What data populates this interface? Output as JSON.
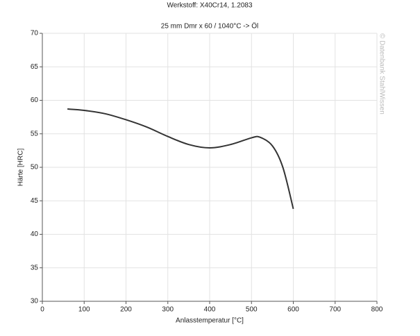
{
  "chart_data": {
    "type": "line",
    "title": "Werkstoff: X40Cr14, 1.2083",
    "subtitle": "25 mm Dmr x 60 / 1040°C -> Öl",
    "x_label": "Anlasstemperatur [°C]",
    "y_label": "Härte [HRC]",
    "watermark": "© Datenbank StahlWissen",
    "x": [
      60,
      100,
      150,
      200,
      250,
      300,
      350,
      400,
      450,
      500,
      520,
      550,
      575,
      600
    ],
    "values": [
      58.7,
      58.5,
      58,
      57.1,
      56,
      54.6,
      53.4,
      52.9,
      53.4,
      54.4,
      54.5,
      53.2,
      50,
      43.8
    ],
    "color": "#333333",
    "xlim": [
      0,
      800
    ],
    "xticks": [
      0,
      100,
      200,
      300,
      400,
      500,
      600,
      700,
      800
    ],
    "ylim": [
      30,
      70
    ],
    "yticks": [
      30,
      35,
      40,
      45,
      50,
      55,
      60,
      65,
      70
    ],
    "grid": true
  }
}
